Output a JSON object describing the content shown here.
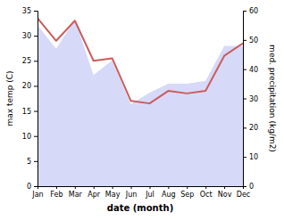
{
  "chart_data": {
    "type": "line",
    "xlabel": "date (month)",
    "ylabel": "max temp (C)",
    "y2label": "med. precipitation (kg/m2)",
    "categories": [
      "Jan",
      "Feb",
      "Mar",
      "Apr",
      "May",
      "Jun",
      "Jul",
      "Aug",
      "Sep",
      "Oct",
      "Nov",
      "Dec"
    ],
    "series": [
      {
        "type": "area",
        "axis": "y2",
        "color": "#c8cef5",
        "values": [
          55,
          47,
          57,
          38,
          43,
          28,
          32,
          35,
          35,
          36,
          48,
          48
        ]
      },
      {
        "type": "line",
        "color": "#cd5c5c",
        "values": [
          33.5,
          29.0,
          33.0,
          25.0,
          25.5,
          17.0,
          16.5,
          19.0,
          18.5,
          19.0,
          26.0,
          28.5
        ]
      }
    ],
    "ylim": [
      0,
      35
    ],
    "yticks": [
      0,
      5,
      10,
      15,
      20,
      25,
      30,
      35
    ],
    "y2lim": [
      0,
      60
    ],
    "y2ticks": [
      0,
      10,
      20,
      30,
      40,
      50,
      60
    ],
    "grid": false
  }
}
